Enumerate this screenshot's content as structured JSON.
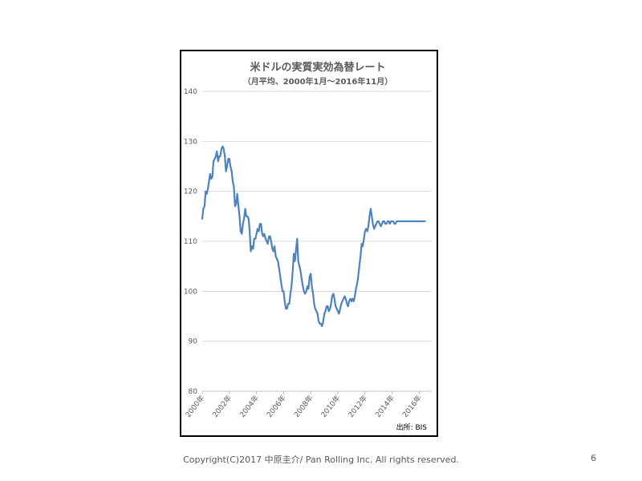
{
  "chart_data": {
    "type": "line",
    "title": "米ドルの実質実効為替レート",
    "subtitle": "（月平均、2000年1月～2016年11月）",
    "source": "出所: BIS",
    "xlabel": "",
    "ylabel": "",
    "ylim": [
      80,
      140
    ],
    "yticks": [
      "80",
      "90",
      "100",
      "110",
      "120",
      "130",
      "140"
    ],
    "xlim": [
      2000.0,
      2016.92
    ],
    "xticks": [
      "2000年",
      "2002年",
      "2004年",
      "2006年",
      "2008年",
      "2010年",
      "2012年",
      "2014年",
      "2016年"
    ],
    "grid": true,
    "line_color": "#4f81bd",
    "series": [
      {
        "x": [
          2000.0,
          2000.08,
          2000.17,
          2000.25,
          2000.33,
          2000.42,
          2000.5,
          2000.58,
          2000.67,
          2000.75,
          2000.83,
          2000.92,
          2001.0,
          2001.08,
          2001.17,
          2001.25,
          2001.33,
          2001.42,
          2001.5,
          2001.58,
          2001.67,
          2001.75,
          2001.83,
          2001.92,
          2002.0,
          2002.08,
          2002.17,
          2002.25,
          2002.33,
          2002.42,
          2002.5,
          2002.58,
          2002.67,
          2002.75,
          2002.83,
          2002.92,
          2003.0,
          2003.08,
          2003.17,
          2003.25,
          2003.33,
          2003.42,
          2003.5,
          2003.58,
          2003.67,
          2003.75,
          2003.83,
          2003.92,
          2004.0,
          2004.08,
          2004.17,
          2004.25,
          2004.33,
          2004.42,
          2004.5,
          2004.58,
          2004.67,
          2004.75,
          2004.83,
          2004.92,
          2005.0,
          2005.08,
          2005.17,
          2005.25,
          2005.33,
          2005.42,
          2005.5,
          2005.58,
          2005.67,
          2005.75,
          2005.83,
          2005.92,
          2006.0,
          2006.08,
          2006.17,
          2006.25,
          2006.33,
          2006.42,
          2006.5,
          2006.58,
          2006.67,
          2006.75,
          2006.83,
          2006.92,
          2007.0,
          2007.08,
          2007.17,
          2007.25,
          2007.33,
          2007.42,
          2007.5,
          2007.58,
          2007.67,
          2007.75,
          2007.83,
          2007.92,
          2008.0,
          2008.08,
          2008.17,
          2008.25,
          2008.33,
          2008.42,
          2008.5,
          2008.58,
          2008.67,
          2008.75,
          2008.83,
          2008.92,
          2009.0,
          2009.08,
          2009.17,
          2009.25,
          2009.33,
          2009.42,
          2009.5,
          2009.58,
          2009.67,
          2009.75,
          2009.83,
          2009.92,
          2010.0,
          2010.08,
          2010.17,
          2010.25,
          2010.33,
          2010.42,
          2010.5,
          2010.58,
          2010.67,
          2010.75,
          2010.83,
          2010.92,
          2011.0,
          2011.08,
          2011.17,
          2011.25,
          2011.33,
          2011.42,
          2011.5,
          2011.58,
          2011.67,
          2011.75,
          2011.83,
          2011.92,
          2012.0,
          2012.08,
          2012.17,
          2012.25,
          2012.33,
          2012.42,
          2012.5,
          2012.58,
          2012.67,
          2012.75,
          2012.83,
          2012.92,
          2013.0,
          2013.08,
          2013.17,
          2013.25,
          2013.33,
          2013.42,
          2013.5,
          2013.58,
          2013.67,
          2013.75,
          2013.83,
          2013.92,
          2014.0,
          2014.08,
          2014.17,
          2014.25,
          2014.33,
          2014.42,
          2014.5,
          2014.58,
          2014.67,
          2014.75,
          2014.83,
          2014.92,
          2015.0,
          2015.08,
          2015.17,
          2015.25,
          2015.33,
          2015.42,
          2015.5,
          2015.58,
          2015.67,
          2015.75,
          2015.83,
          2015.92,
          2016.0,
          2016.08,
          2016.17,
          2016.25,
          2016.33,
          2016.42,
          2016.5,
          2016.58,
          2016.67,
          2016.75,
          2016.83,
          2016.92
        ],
        "y": [
          114.5,
          116.5,
          117.0,
          120.0,
          119.5,
          120.5,
          122.0,
          123.5,
          122.5,
          123.0,
          126.0,
          126.5,
          127.0,
          128.0,
          126.0,
          127.0,
          127.0,
          128.5,
          129.0,
          128.5,
          127.0,
          124.0,
          125.0,
          126.5,
          126.5,
          125.0,
          124.0,
          122.0,
          121.0,
          117.0,
          117.5,
          119.5,
          117.0,
          115.0,
          112.0,
          111.5,
          113.5,
          114.5,
          116.5,
          115.0,
          115.0,
          114.5,
          112.0,
          108.0,
          109.0,
          108.5,
          110.5,
          110.5,
          111.5,
          112.5,
          112.0,
          113.5,
          113.5,
          111.5,
          111.0,
          111.5,
          110.5,
          110.0,
          109.5,
          111.0,
          111.0,
          110.0,
          108.5,
          108.0,
          109.0,
          107.0,
          106.5,
          106.0,
          104.5,
          103.0,
          101.5,
          100.0,
          100.0,
          98.0,
          96.5,
          96.5,
          97.5,
          97.5,
          99.5,
          101.0,
          104.0,
          107.5,
          106.0,
          108.5,
          110.5,
          106.0,
          105.0,
          104.0,
          102.5,
          101.0,
          100.0,
          99.5,
          100.0,
          101.0,
          100.5,
          103.0,
          103.5,
          101.0,
          99.5,
          97.5,
          96.5,
          96.0,
          95.5,
          94.0,
          93.5,
          93.5,
          93.0,
          94.0,
          95.5,
          96.0,
          97.0,
          97.0,
          96.0,
          96.5,
          97.5,
          99.0,
          99.5,
          98.5,
          97.0,
          96.5,
          96.0,
          95.5,
          96.5,
          97.5,
          98.0,
          98.5,
          99.0,
          98.5,
          97.5,
          97.0,
          98.0,
          98.5,
          98.0,
          98.5,
          98.0,
          99.0,
          100.5,
          101.5,
          103.0,
          105.0,
          107.0,
          109.5,
          109.0,
          110.5,
          112.0,
          112.5,
          112.0,
          113.0,
          115.0,
          116.5,
          115.0,
          113.5,
          112.5,
          113.0,
          113.5,
          114.0,
          114.0,
          113.5,
          113.0,
          113.5,
          114.0,
          114.0,
          113.5,
          113.5,
          114.0,
          114.0,
          113.5,
          114.0,
          114.0,
          114.0,
          113.5,
          113.5,
          114.0,
          114.0,
          114.0,
          114.0,
          114.0,
          114.0,
          114.0,
          114.0,
          114.0,
          114.0,
          114.0,
          114.0,
          114.0,
          114.0,
          114.0,
          114.0,
          114.0,
          114.0,
          114.0,
          114.0,
          114.0,
          114.0,
          114.0,
          114.0,
          114.0,
          114.0,
          114.0,
          114.0,
          114.0,
          114.0,
          114.0,
          114.0
        ]
      }
    ]
  },
  "footer": {
    "copyright": "Copyright(C)2017 中原圭介/ Pan Rolling Inc. All rights reserved.",
    "page_number": "6"
  }
}
